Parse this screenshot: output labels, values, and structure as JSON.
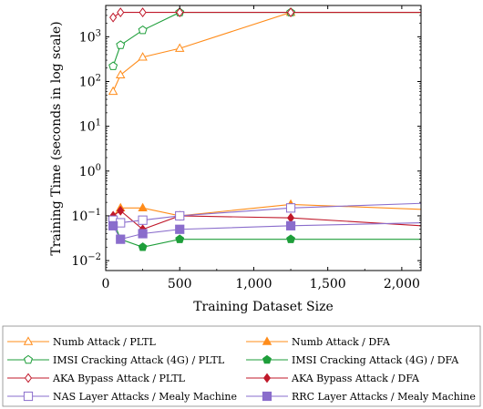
{
  "chart_data": {
    "type": "line",
    "title": "",
    "xlabel": "Training Dataset Size",
    "ylabel": "Training Time (seconds in log scale)",
    "xlim": [
      0,
      2130
    ],
    "ylim": [
      0.006,
      5000
    ],
    "yscale": "log",
    "x_ticks": [
      0,
      500,
      1000,
      1500,
      2000
    ],
    "x_tick_labels": [
      "0",
      "500",
      "1,000",
      "1,500",
      "2,000"
    ],
    "y_ticks": [
      0.01,
      0.1,
      1,
      10,
      100,
      1000
    ],
    "y_tick_labels_base": [
      "10",
      "10",
      "10",
      "10",
      "10",
      "10"
    ],
    "y_tick_labels_exp": [
      "−2",
      "−1",
      "0",
      "1",
      "2",
      "3"
    ],
    "grid": false,
    "legend_position": "bottom",
    "series": [
      {
        "name": "Numb Attack / PLTL",
        "color": "#ff8c1a",
        "marker": "triangle",
        "filled": false,
        "points": [
          [
            50,
            60
          ],
          [
            100,
            140
          ],
          [
            250,
            350
          ],
          [
            500,
            550
          ],
          [
            1250,
            3500
          ],
          [
            2130,
            3500
          ]
        ]
      },
      {
        "name": "Numb Attack / DFA",
        "color": "#ff8c1a",
        "marker": "triangle",
        "filled": true,
        "points": [
          [
            50,
            0.1
          ],
          [
            100,
            0.15
          ],
          [
            250,
            0.15
          ],
          [
            500,
            0.1
          ],
          [
            1250,
            0.18
          ],
          [
            2130,
            0.14
          ]
        ]
      },
      {
        "name": "IMSI Cracking Attack (4G) / PLTL",
        "color": "#1e9e3a",
        "marker": "pentagon",
        "filled": false,
        "points": [
          [
            50,
            220
          ],
          [
            100,
            650
          ],
          [
            250,
            1400
          ],
          [
            500,
            3500
          ],
          [
            1250,
            3500
          ],
          [
            2130,
            3500
          ]
        ]
      },
      {
        "name": "IMSI Cracking Attack (4G) / DFA",
        "color": "#1e9e3a",
        "marker": "pentagon",
        "filled": true,
        "points": [
          [
            50,
            0.08
          ],
          [
            100,
            0.03
          ],
          [
            250,
            0.02
          ],
          [
            500,
            0.03
          ],
          [
            1250,
            0.03
          ],
          [
            2130,
            0.03
          ]
        ]
      },
      {
        "name": "AKA Bypass Attack / PLTL",
        "color": "#c0182a",
        "marker": "diamond",
        "filled": false,
        "points": [
          [
            50,
            2700
          ],
          [
            100,
            3500
          ],
          [
            250,
            3500
          ],
          [
            500,
            3500
          ],
          [
            1250,
            3500
          ],
          [
            2130,
            3500
          ]
        ]
      },
      {
        "name": "AKA Bypass Attack / DFA",
        "color": "#c0182a",
        "marker": "diamond",
        "filled": true,
        "points": [
          [
            50,
            0.1
          ],
          [
            100,
            0.13
          ],
          [
            250,
            0.05
          ],
          [
            500,
            0.1
          ],
          [
            1250,
            0.09
          ],
          [
            2130,
            0.06
          ]
        ]
      },
      {
        "name": "NAS Layer Attacks / Mealy Machine",
        "color": "#8a6dcc",
        "marker": "square",
        "filled": false,
        "points": [
          [
            50,
            0.08
          ],
          [
            100,
            0.07
          ],
          [
            250,
            0.08
          ],
          [
            500,
            0.1
          ],
          [
            1250,
            0.15
          ],
          [
            2130,
            0.19
          ]
        ]
      },
      {
        "name": "RRC Layer Attacks / Mealy Machine",
        "color": "#8a6dcc",
        "marker": "square",
        "filled": true,
        "points": [
          [
            50,
            0.06
          ],
          [
            100,
            0.03
          ],
          [
            250,
            0.04
          ],
          [
            500,
            0.05
          ],
          [
            1250,
            0.06
          ],
          [
            2130,
            0.07
          ]
        ]
      }
    ]
  }
}
